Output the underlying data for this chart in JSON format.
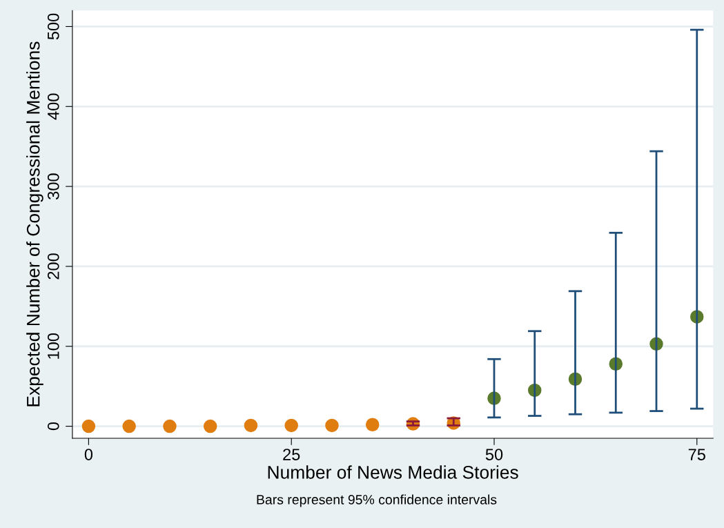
{
  "chart_data": {
    "type": "scatter",
    "xlabel": "Number of News Media Stories",
    "ylabel": "Expected Number of Congressional Mentions",
    "annotations": [
      "Bars represent 95% confidence intervals"
    ],
    "series": [
      {
        "color": "#e07d10",
        "x": [
          0,
          5,
          10,
          15,
          20,
          25,
          30,
          35,
          40,
          45
        ],
        "values": [
          0,
          0,
          0,
          0,
          1,
          1,
          1,
          2,
          3,
          4
        ],
        "errors": [
          null,
          null,
          null,
          null,
          null,
          null,
          null,
          null,
          [
            1,
            6
          ],
          [
            1,
            10
          ]
        ]
      },
      {
        "color": "#5a7a2c",
        "x": [
          50,
          55,
          60,
          65,
          70,
          75
        ],
        "values": [
          35,
          45,
          59,
          78,
          103,
          137
        ],
        "errors": [
          [
            11,
            84
          ],
          [
            13,
            119
          ],
          [
            15,
            169
          ],
          [
            17,
            242
          ],
          [
            19,
            344
          ],
          [
            22,
            496
          ]
        ]
      }
    ],
    "xlim": [
      -2,
      77
    ],
    "xticks": [
      0,
      25,
      50,
      75
    ],
    "ylim": [
      -15,
      520
    ],
    "yticks": [
      0,
      100,
      200,
      300,
      400,
      500
    ],
    "grid": "y",
    "marker": "circle",
    "legend": false
  }
}
